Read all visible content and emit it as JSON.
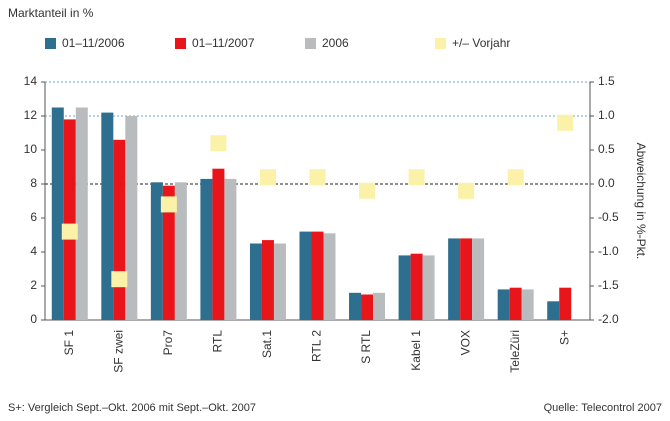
{
  "chart_data": {
    "type": "bar",
    "title": "Marktanteil in %",
    "y2_label": "Abweichung in %-Pkt.",
    "footnote": "S+: Vergleich Sept.–Okt. 2006 mit Sept.–Okt. 2007",
    "source": "Quelle: Telecontrol 2007",
    "categories": [
      "SF 1",
      "SF zwei",
      "Pro7",
      "RTL",
      "Sat.1",
      "RTL 2",
      "S RTL",
      "Kabel 1",
      "VOX",
      "TeleZüri",
      "S+"
    ],
    "series": [
      {
        "name": "01–11/2006",
        "color": "#2e6e8e",
        "values": [
          12.5,
          12.2,
          8.1,
          8.3,
          4.5,
          5.2,
          1.6,
          3.8,
          4.8,
          1.8,
          1.1
        ]
      },
      {
        "name": "01–11/2007",
        "color": "#e8161b",
        "values": [
          11.8,
          10.6,
          7.9,
          8.9,
          4.7,
          5.2,
          1.5,
          3.9,
          4.8,
          1.9,
          1.9
        ]
      },
      {
        "name": "2006",
        "color": "#b9bcbf",
        "values": [
          12.5,
          12.0,
          8.1,
          8.3,
          4.5,
          5.1,
          1.6,
          3.8,
          4.8,
          1.8,
          null
        ]
      },
      {
        "name": "+/– Vorjahr",
        "color": "#fbf1a8",
        "axis": "y2",
        "type": "scatter",
        "values": [
          -0.7,
          -1.4,
          -0.3,
          0.6,
          0.1,
          0.1,
          -0.1,
          0.1,
          -0.1,
          0.1,
          0.9
        ]
      }
    ],
    "ylim": [
      0,
      14
    ],
    "yticks": [
      0,
      2,
      4,
      6,
      8,
      10,
      12,
      14
    ],
    "y2lim": [
      -2,
      1.5
    ],
    "y2ticks": [
      1.5,
      {
        "value": 1,
        "label": "1.0"
      },
      0.5,
      {
        "value": 0,
        "label": "0.0"
      },
      -0.5,
      {
        "value": -1,
        "label": "-1.0"
      },
      -1.5,
      {
        "value": -2,
        "label": "-2.0"
      }
    ]
  }
}
